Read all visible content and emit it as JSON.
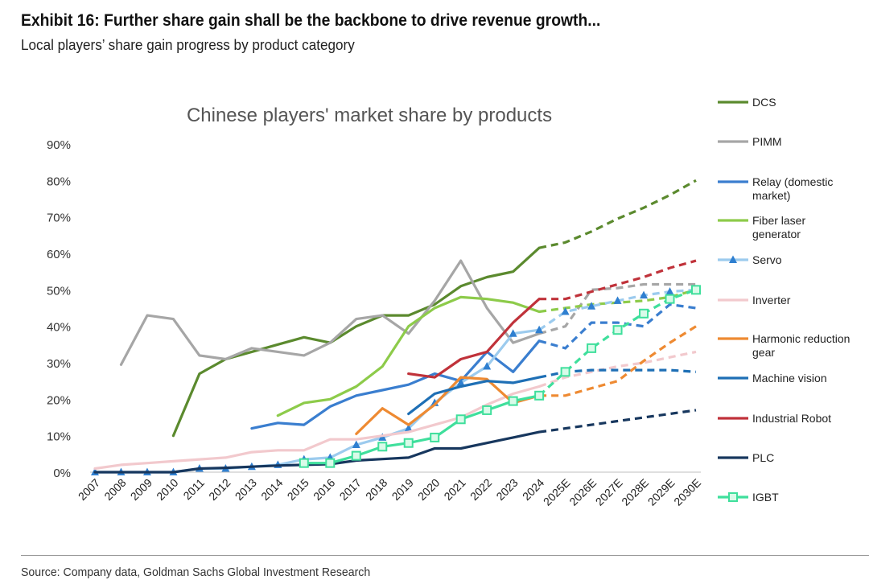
{
  "header": {
    "title": "Exhibit 16: Further share gain shall be the backbone to drive revenue growth...",
    "subtitle": "Local players’ share gain progress by product category"
  },
  "footer": {
    "source": "Source: Company data, Goldman Sachs Global Investment Research"
  },
  "chart_data": {
    "type": "line",
    "title": "Chinese players' market share by products",
    "xlabel": "",
    "ylabel": "",
    "x": [
      "2007",
      "2008",
      "2009",
      "2010",
      "2011",
      "2012",
      "2013",
      "2014",
      "2015",
      "2016",
      "2017",
      "2018",
      "2019",
      "2020",
      "2021",
      "2022",
      "2023",
      "2024",
      "2025E",
      "2026E",
      "2027E",
      "2028E",
      "2029E",
      "2030E"
    ],
    "yticks": [
      0,
      10,
      20,
      30,
      40,
      50,
      60,
      70,
      80,
      90
    ],
    "ytick_labels": [
      "0%",
      "10%",
      "20%",
      "30%",
      "40%",
      "50%",
      "60%",
      "70%",
      "80%",
      "90%"
    ],
    "ylim": [
      0,
      90
    ],
    "legend_position": "right",
    "forecast_start_index": 17,
    "series": [
      {
        "name": "DCS",
        "color": "#5b8a2e",
        "marker": "none",
        "values": [
          null,
          null,
          null,
          10,
          27,
          31,
          33,
          35,
          37,
          35.5,
          40,
          43,
          43,
          46,
          51,
          53.5,
          55,
          61.5,
          63,
          66,
          69.5,
          72.5,
          76,
          80
        ]
      },
      {
        "name": "PIMM",
        "color": "#a6a6a6",
        "marker": "none",
        "values": [
          null,
          29.5,
          43,
          42,
          32,
          31,
          34,
          33,
          32,
          35.5,
          42,
          43,
          38,
          47,
          58,
          45,
          35.5,
          38,
          40,
          50,
          50.5,
          51.5,
          51.5,
          51.5
        ]
      },
      {
        "name": "Relay  (domestic market)",
        "color": "#3a7ecf",
        "marker": "none",
        "values": [
          null,
          null,
          null,
          null,
          null,
          null,
          12,
          13.5,
          13,
          18,
          21,
          22.5,
          24,
          27,
          25,
          33,
          27.5,
          36,
          34,
          41,
          41,
          40,
          46,
          45
        ]
      },
      {
        "name": "Fiber laser generator",
        "color": "#8dcb4a",
        "marker": "none",
        "values": [
          null,
          null,
          null,
          null,
          null,
          null,
          null,
          15.5,
          19,
          20,
          23.5,
          29,
          40,
          45,
          48,
          47.5,
          46.5,
          44,
          45,
          46,
          46.5,
          47,
          48,
          50
        ]
      },
      {
        "name": "Servo",
        "color": "#9ccbee",
        "marker": "triangle",
        "values": [
          0,
          0,
          0,
          0,
          1,
          1,
          1.5,
          2,
          3.5,
          4,
          7.5,
          9.5,
          12,
          19,
          24.5,
          29,
          38,
          39,
          44,
          45.5,
          47,
          48.5,
          49.5,
          50
        ]
      },
      {
        "name": "Inverter",
        "color": "#f2c9cd",
        "marker": "none",
        "values": [
          1,
          2,
          2.5,
          3,
          3.5,
          4,
          5.5,
          6,
          6,
          9,
          9,
          10,
          11,
          13,
          15,
          18.5,
          21.5,
          23.5,
          26,
          27.5,
          29,
          30,
          31.5,
          33
        ]
      },
      {
        "name": "Harmonic reduction gear",
        "color": "#ee8a32",
        "marker": "none",
        "values": [
          null,
          null,
          null,
          null,
          null,
          null,
          null,
          null,
          null,
          null,
          10.5,
          17.5,
          13,
          18.5,
          26,
          25.5,
          19,
          21,
          21,
          23,
          25,
          30.5,
          35.5,
          40
        ]
      },
      {
        "name": "Machine vision",
        "color": "#1e6fb5",
        "marker": "none",
        "values": [
          null,
          null,
          null,
          null,
          null,
          null,
          null,
          null,
          null,
          null,
          null,
          null,
          16,
          21.5,
          23.5,
          25,
          24.5,
          26,
          27.5,
          28,
          28,
          28,
          28,
          27.5
        ]
      },
      {
        "name": "Industrial Robot",
        "color": "#c0323a",
        "marker": "none",
        "values": [
          null,
          null,
          null,
          null,
          null,
          null,
          null,
          null,
          null,
          null,
          null,
          null,
          27,
          26,
          31,
          33,
          41,
          47.5,
          47.5,
          49.5,
          51.5,
          53.5,
          56,
          58
        ]
      },
      {
        "name": "PLC",
        "color": "#17375e",
        "marker": "none",
        "values": [
          0,
          0,
          0,
          0,
          1,
          1.2,
          1.5,
          1.8,
          2,
          2.2,
          3.2,
          3.6,
          4,
          6.5,
          6.5,
          8,
          9.5,
          11,
          12,
          13,
          14,
          15,
          16,
          17
        ]
      },
      {
        "name": "IGBT",
        "color": "#3fdf9c",
        "marker": "square",
        "values": [
          null,
          null,
          null,
          null,
          null,
          null,
          null,
          null,
          2.5,
          2.5,
          4.5,
          7,
          8,
          9.5,
          14.5,
          17,
          19.5,
          21,
          27.5,
          34,
          39,
          43.5,
          47.5,
          50
        ]
      }
    ]
  }
}
